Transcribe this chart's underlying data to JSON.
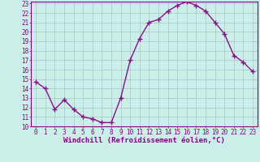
{
  "hours": [
    0,
    1,
    2,
    3,
    4,
    5,
    6,
    7,
    8,
    9,
    10,
    11,
    12,
    13,
    14,
    15,
    16,
    17,
    18,
    19,
    20,
    21,
    22,
    23
  ],
  "values": [
    14.7,
    14.0,
    11.8,
    12.8,
    11.8,
    11.0,
    10.8,
    10.4,
    10.4,
    13.0,
    17.0,
    19.3,
    21.0,
    21.3,
    22.2,
    22.8,
    23.2,
    22.8,
    22.2,
    21.0,
    19.8,
    17.5,
    16.8,
    15.8
  ],
  "line_color": "#881188",
  "marker": "+",
  "marker_size": 4,
  "background_color": "#cceee8",
  "grid_color": "#aacccc",
  "xlabel": "Windchill (Refroidissement éolien,°C)",
  "ylabel": "",
  "ylim": [
    10,
    23
  ],
  "xlim": [
    -0.5,
    23.5
  ],
  "yticks": [
    10,
    11,
    12,
    13,
    14,
    15,
    16,
    17,
    18,
    19,
    20,
    21,
    22,
    23
  ],
  "xticks": [
    0,
    1,
    2,
    3,
    4,
    5,
    6,
    7,
    8,
    9,
    10,
    11,
    12,
    13,
    14,
    15,
    16,
    17,
    18,
    19,
    20,
    21,
    22,
    23
  ],
  "tick_label_size": 5.5,
  "xlabel_size": 6.5,
  "spine_color": "#880088",
  "line_width": 1.0
}
